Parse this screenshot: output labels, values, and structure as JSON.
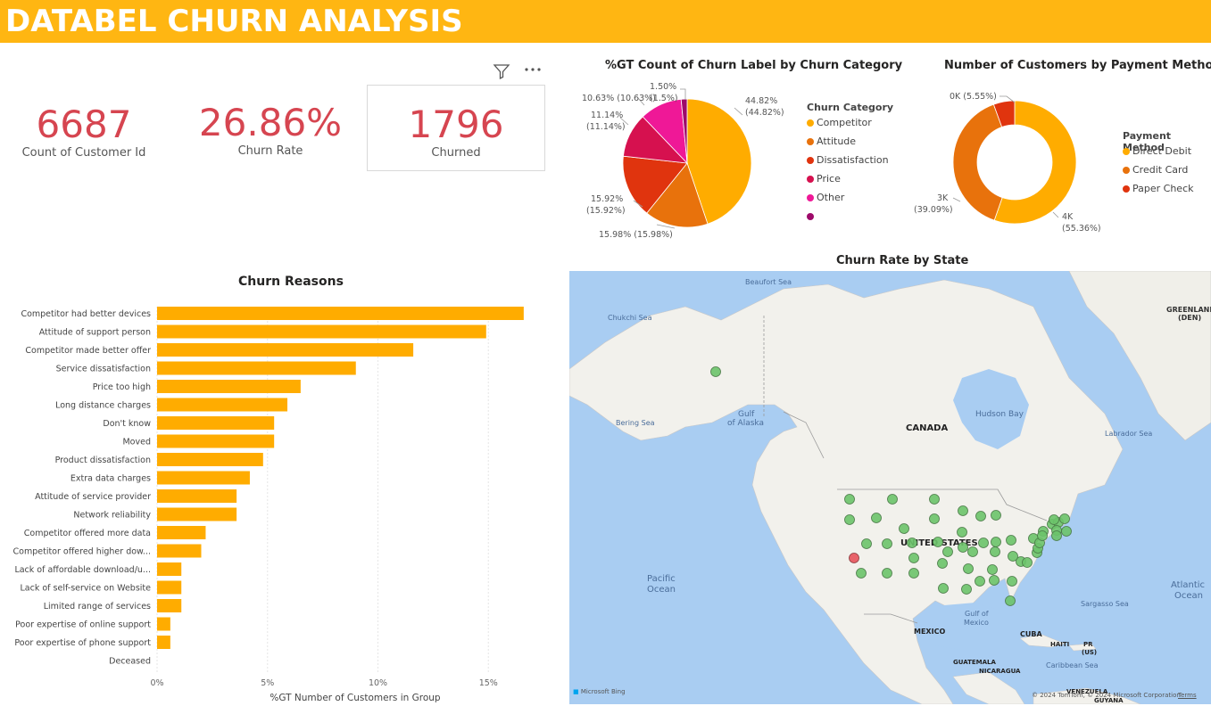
{
  "header": {
    "title": "DATABEL CHURN ANALYSIS",
    "bg": "#FFB612"
  },
  "kpis": [
    {
      "value": "6687",
      "label": "Count of Customer Id"
    },
    {
      "value": "26.86%",
      "label": "Churn Rate"
    },
    {
      "value": "1796",
      "label": "Churned"
    }
  ],
  "visual_header": {
    "filter_icon": "filter-icon",
    "more_icon": "more-options-icon"
  },
  "pie": {
    "title": "%GT Count of Churn Label by Churn Category",
    "legend_title": "Churn Category",
    "legend": [
      {
        "name": "Competitor",
        "color": "#FFAC00"
      },
      {
        "name": "Attitude",
        "color": "#E8720C"
      },
      {
        "name": "Dissatisfaction",
        "color": "#E0340E"
      },
      {
        "name": "Price",
        "color": "#D6114F"
      },
      {
        "name": "Other",
        "color": "#EF1897"
      },
      {
        "name": "",
        "color": "#9E0A6A"
      }
    ],
    "labels": [
      {
        "a": "44.82%",
        "b": "(44.82%)"
      },
      {
        "a": "15.98% (15.98%)",
        "b": ""
      },
      {
        "a": "15.92%",
        "b": "(15.92%)"
      },
      {
        "a": "11.14%",
        "b": "(11.14%)"
      },
      {
        "a": "10.63% (10.63%)",
        "b": ""
      },
      {
        "a": "1.50%",
        "b": "(1.5%)"
      }
    ]
  },
  "donut": {
    "title": "Number of Customers by Payment Method",
    "legend_title": "Payment Method",
    "legend": [
      {
        "name": "Direct Debit",
        "color": "#FFAC00"
      },
      {
        "name": "Credit Card",
        "color": "#E8720C"
      },
      {
        "name": "Paper Check",
        "color": "#E0340E"
      }
    ],
    "labels": [
      {
        "a": "0K (5.55%)",
        "b": ""
      },
      {
        "a": "3K",
        "b": "(39.09%)"
      },
      {
        "a": "4K",
        "b": "(55.36%)"
      }
    ]
  },
  "reasons": {
    "title": "Churn Reasons",
    "xlabel": "%GT Number of Customers in Group",
    "ticks": [
      "0%",
      "5%",
      "10%",
      "15%"
    ]
  },
  "map": {
    "title": "Churn Rate by State",
    "labels": {
      "beaufort": "Beaufort Sea",
      "chukchi": "Chukchi Sea",
      "greenland": "GREENLAND",
      "greenland2": "(DEN)",
      "bering": "Bering Sea",
      "gulf_alaska": "Gulf",
      "gulf_alaska2": "of Alaska",
      "hudson": "Hudson Bay",
      "canada": "CANADA",
      "labrador": "Labrador Sea",
      "us": "UNITED STATES",
      "pacific": "Pacific",
      "pacific2": "Ocean",
      "atlantic": "Atlantic",
      "atlantic2": "Ocean",
      "sargasso": "Sargasso Sea",
      "gulf_mexico": "Gulf of",
      "gulf_mexico2": "Mexico",
      "mexico": "MEXICO",
      "cuba": "CUBA",
      "haiti": "HAITI",
      "pr": "PR",
      "pr2": "(US)",
      "guatemala": "GUATEMALA",
      "nicaragua": "NICARAGUA",
      "caribbean": "Caribbean Sea",
      "venezuela": "VENEZUELA",
      "guyana": "GUYANA",
      "bing": "Microsoft Bing",
      "copyright": "© 2024 TomTom, © 2024 Microsoft Corporation",
      "terms": "Terms"
    },
    "colors": {
      "normal": "#6CC36A",
      "high": "#E8636A"
    }
  },
  "chart_data": [
    {
      "type": "bar",
      "title": "Churn Reasons",
      "xlabel": "%GT Number of Customers in Group",
      "xlim": [
        0,
        17.5
      ],
      "categories": [
        "Competitor had better devices",
        "Attitude of support person",
        "Competitor made better offer",
        "Service dissatisfaction",
        "Price too high",
        "Long distance charges",
        "Don't know",
        "Moved",
        "Product dissatisfaction",
        "Extra data charges",
        "Attitude of service provider",
        "Network reliability",
        "Competitor offered more data",
        "Competitor offered higher dow...",
        "Lack of affordable download/u...",
        "Lack of self-service on Website",
        "Limited range of services",
        "Poor expertise of online support",
        "Poor expertise of phone support",
        "Deceased"
      ],
      "values": [
        16.6,
        14.9,
        11.6,
        9.0,
        6.5,
        5.9,
        5.3,
        5.3,
        4.8,
        4.2,
        3.6,
        3.6,
        2.2,
        2.0,
        1.1,
        1.1,
        1.1,
        0.6,
        0.6,
        0.0
      ],
      "color": "#FFAC00"
    },
    {
      "type": "pie",
      "title": "%GT Count of Churn Label by Churn Category",
      "categories": [
        "Competitor",
        "Attitude",
        "Dissatisfaction",
        "Price",
        "Other",
        ""
      ],
      "values": [
        44.82,
        15.98,
        15.92,
        11.14,
        10.63,
        1.5
      ]
    },
    {
      "type": "pie",
      "title": "Number of Customers by Payment Method",
      "categories": [
        "Direct Debit",
        "Credit Card",
        "Paper Check"
      ],
      "values": [
        55.36,
        39.09,
        5.55
      ]
    }
  ]
}
